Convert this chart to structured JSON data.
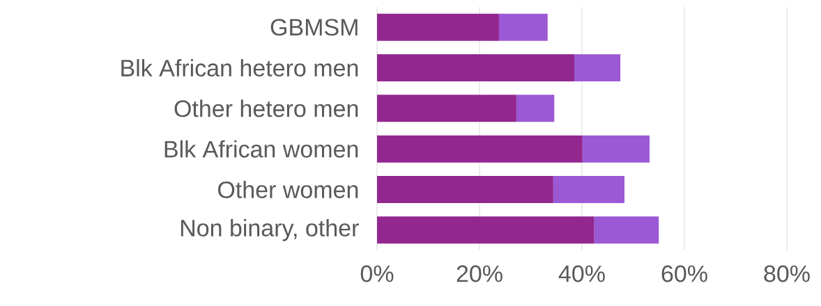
{
  "chart_data": {
    "type": "bar",
    "orientation": "horizontal",
    "stacked": true,
    "categories": [
      "GBMSM",
      "Blk African hetero men",
      "Other hetero men",
      "Blk African women",
      "Other women",
      "Non binary, other"
    ],
    "series": [
      {
        "color": "#92278f",
        "values": [
          23.8,
          38.5,
          27.2,
          40.1,
          34.4,
          42.4
        ]
      },
      {
        "color": "#9b59d6",
        "values": [
          9.5,
          9.0,
          7.4,
          13.1,
          13.9,
          12.6
        ]
      }
    ],
    "xlim": [
      0,
      80
    ],
    "xticks": [
      {
        "value": 0,
        "label": "0%"
      },
      {
        "value": 20,
        "label": "20%"
      },
      {
        "value": 40,
        "label": "40%"
      },
      {
        "value": 60,
        "label": "60%"
      },
      {
        "value": 80,
        "label": "80%"
      }
    ],
    "grid": "x"
  }
}
